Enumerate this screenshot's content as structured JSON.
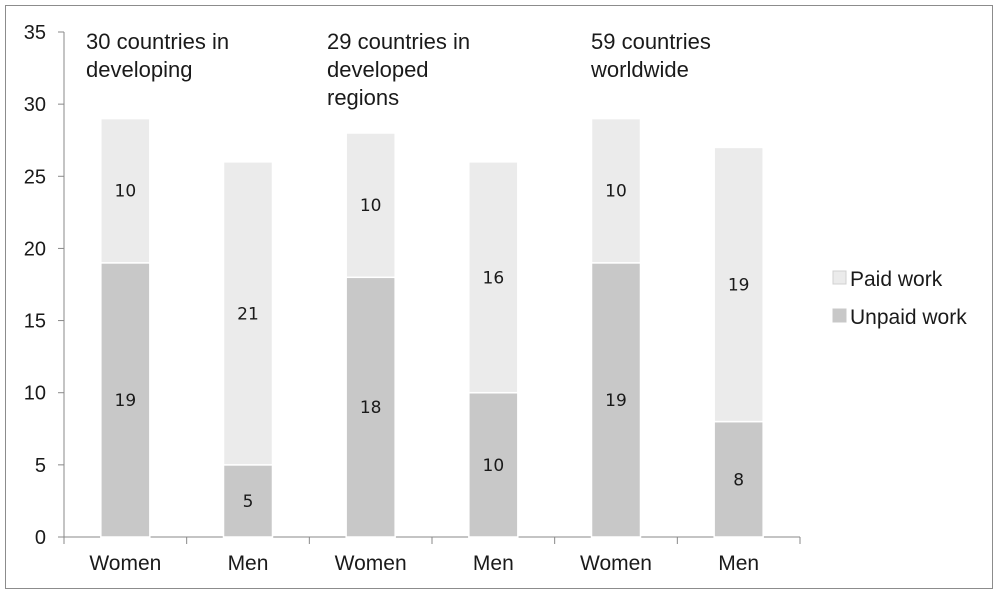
{
  "chart_data": {
    "type": "bar",
    "stacked": true,
    "categories": [
      "Women",
      "Men",
      "Women",
      "Men",
      "Women",
      "Men"
    ],
    "series": [
      {
        "name": "Unpaid work",
        "values": [
          19,
          5,
          18,
          10,
          19,
          8
        ],
        "color": "#c8c8c8"
      },
      {
        "name": "Paid work",
        "values": [
          10,
          21,
          10,
          16,
          10,
          19
        ],
        "color": "#ebebeb"
      }
    ],
    "group_annotations": [
      "30 countries in\ndeveloping",
      "29 countries in\ndeveloped\nregions",
      "59 countries\nworldwide"
    ],
    "yticks": [
      0,
      5,
      10,
      15,
      20,
      25,
      30,
      35
    ],
    "ylim": [
      0,
      35
    ],
    "grid": false,
    "legend_position": "right"
  }
}
